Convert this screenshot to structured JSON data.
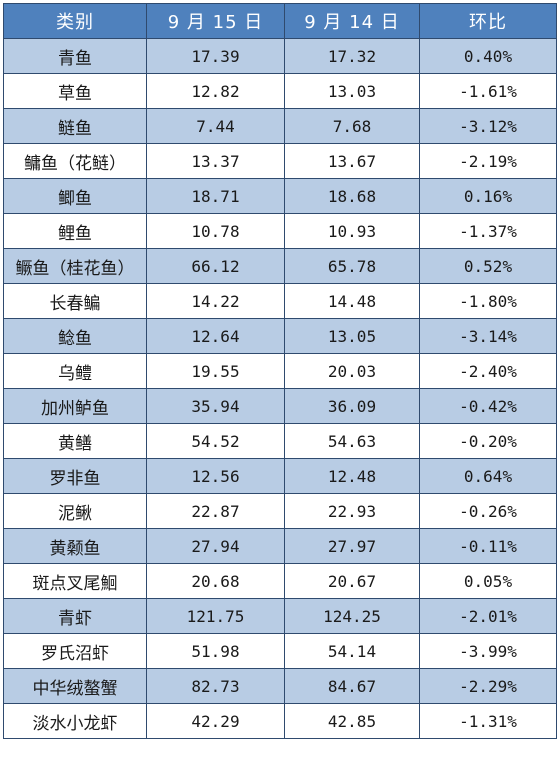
{
  "table": {
    "headers": [
      "类别",
      "9 月 15 日",
      "9 月 14 日",
      "环比"
    ],
    "rows": [
      [
        "青鱼",
        "17.39",
        "17.32",
        "0.40%"
      ],
      [
        "草鱼",
        "12.82",
        "13.03",
        "-1.61%"
      ],
      [
        "鲢鱼",
        "7.44",
        "7.68",
        "-3.12%"
      ],
      [
        "鳙鱼（花鲢）",
        "13.37",
        "13.67",
        "-2.19%"
      ],
      [
        "鲫鱼",
        "18.71",
        "18.68",
        "0.16%"
      ],
      [
        "鲤鱼",
        "10.78",
        "10.93",
        "-1.37%"
      ],
      [
        "鳜鱼（桂花鱼）",
        "66.12",
        "65.78",
        "0.52%"
      ],
      [
        "长春鳊",
        "14.22",
        "14.48",
        "-1.80%"
      ],
      [
        "鲶鱼",
        "12.64",
        "13.05",
        "-3.14%"
      ],
      [
        "乌鳢",
        "19.55",
        "20.03",
        "-2.40%"
      ],
      [
        "加州鲈鱼",
        "35.94",
        "36.09",
        "-0.42%"
      ],
      [
        "黄鳝",
        "54.52",
        "54.63",
        "-0.20%"
      ],
      [
        "罗非鱼",
        "12.56",
        "12.48",
        "0.64%"
      ],
      [
        "泥鳅",
        "22.87",
        "22.93",
        "-0.26%"
      ],
      [
        "黄颡鱼",
        "27.94",
        "27.97",
        "-0.11%"
      ],
      [
        "斑点叉尾鮰",
        "20.68",
        "20.67",
        "0.05%"
      ],
      [
        "青虾",
        "121.75",
        "124.25",
        "-2.01%"
      ],
      [
        "罗氏沼虾",
        "51.98",
        "54.14",
        "-3.99%"
      ],
      [
        "中华绒螯蟹",
        "82.73",
        "84.67",
        "-2.29%"
      ],
      [
        "淡水小龙虾",
        "42.29",
        "42.85",
        "-1.31%"
      ]
    ]
  },
  "colors": {
    "header_bg": "#4f81bd",
    "header_text": "#ffffff",
    "shaded_row": "#b8cce4",
    "plain_row": "#ffffff",
    "border": "#2f4a6e"
  }
}
